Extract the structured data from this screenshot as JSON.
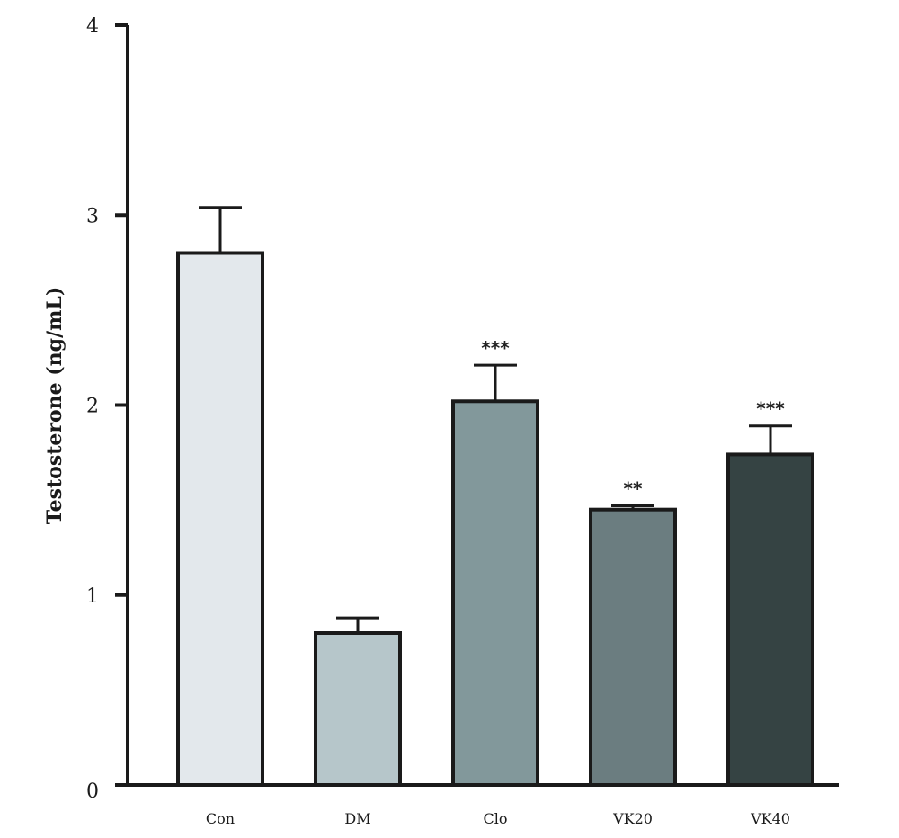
{
  "chart_data": {
    "type": "bar",
    "ylabel": "Testosterone (ng/mL)",
    "xlabel": "",
    "ylim": [
      0,
      4
    ],
    "yticks": [
      0,
      1,
      2,
      3,
      4
    ],
    "categories": [
      "Con",
      "DM",
      "Clo",
      "VK20",
      "VK40"
    ],
    "values": [
      2.8,
      0.8,
      2.02,
      1.45,
      1.74
    ],
    "errors": [
      0.24,
      0.08,
      0.19,
      0.02,
      0.15
    ],
    "significance": [
      "",
      "",
      "***",
      "**",
      "***"
    ],
    "bar_colors": [
      "#e3e8ec",
      "#b6c6ca",
      "#82989b",
      "#6b7d80",
      "#354343"
    ],
    "grid": false
  }
}
